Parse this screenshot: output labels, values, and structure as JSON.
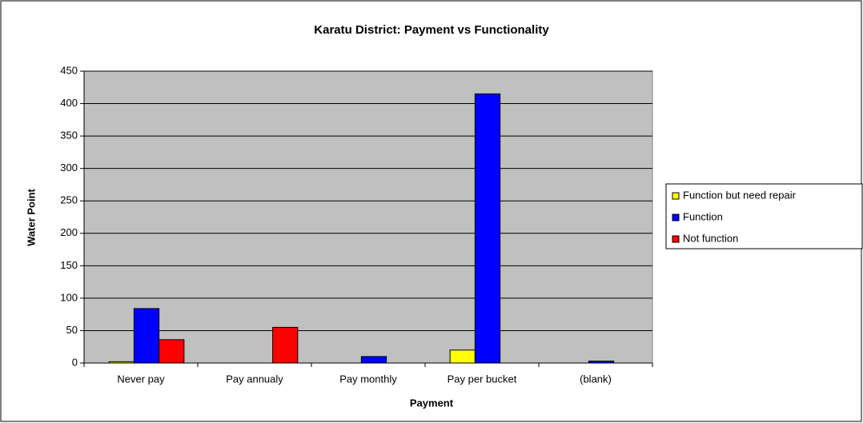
{
  "chart_data": {
    "type": "bar",
    "title": "Karatu District: Payment vs Functionality",
    "x_label": "Payment",
    "y_label": "Water Point",
    "categories": [
      "Never pay",
      "Pay annualy",
      "Pay monthly",
      "Pay per bucket",
      "(blank)"
    ],
    "series": [
      {
        "name": "Function but  need repair",
        "color": "#ffff00",
        "values": [
          2,
          0,
          0,
          20,
          0
        ]
      },
      {
        "name": "Function",
        "color": "#0000ff",
        "values": [
          84,
          0,
          10,
          415,
          3
        ]
      },
      {
        "name": "Not function",
        "color": "#ff0000",
        "values": [
          36,
          55,
          0,
          0,
          0
        ]
      }
    ],
    "ylim": [
      0,
      450
    ],
    "yticks": [
      0,
      50,
      100,
      150,
      200,
      250,
      300,
      350,
      400,
      450
    ],
    "grid": true,
    "legend": "right",
    "plot_background": "#c0c0c0"
  }
}
